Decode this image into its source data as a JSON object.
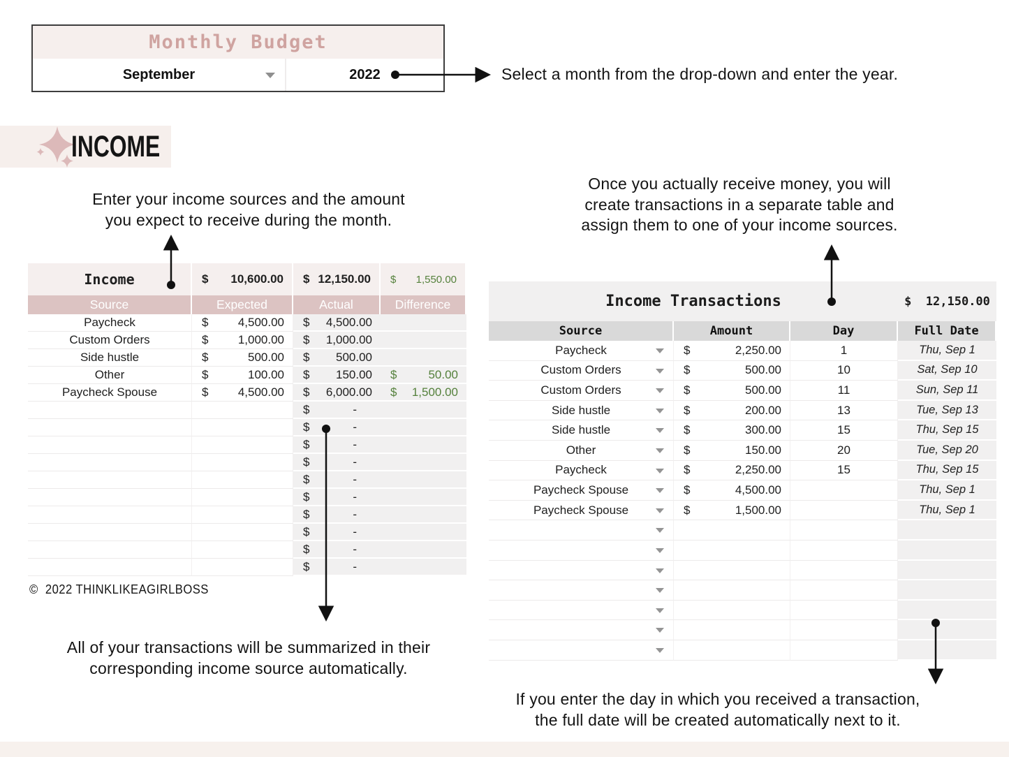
{
  "budget_widget": {
    "title": "Monthly Budget",
    "month": "September",
    "year": "2022"
  },
  "income_section": {
    "label": "INCOME"
  },
  "annotations": {
    "select_month": "Select a month from the drop-down and enter the year.",
    "enter_income_line1": "Enter your income sources and the amount",
    "enter_income_line2": "you expect to receive during the month.",
    "once_receive_line1": "Once you actually receive money, you will",
    "once_receive_line2": "create transactions in a separate table and",
    "once_receive_line3": "assign them to one of your income sources.",
    "summarized_line1": "All of your transactions will be summarized in their",
    "summarized_line2": "corresponding income source automatically.",
    "full_date_line1": "If you enter the day in which you received a transaction,",
    "full_date_line2": "the full date will be created automatically next to it."
  },
  "income_table": {
    "title": "Income",
    "currency_symbol": "$",
    "totals": {
      "expected": "10,600.00",
      "actual": "12,150.00",
      "difference": "1,550.00"
    },
    "headers": [
      "Source",
      "Expected",
      "Actual",
      "Difference"
    ],
    "rows": [
      {
        "source": "Paycheck",
        "expected": "4,500.00",
        "actual": "4,500.00",
        "difference": ""
      },
      {
        "source": "Custom Orders",
        "expected": "1,000.00",
        "actual": "1,000.00",
        "difference": ""
      },
      {
        "source": "Side hustle",
        "expected": "500.00",
        "actual": "500.00",
        "difference": ""
      },
      {
        "source": "Other",
        "expected": "100.00",
        "actual": "150.00",
        "difference": "50.00"
      },
      {
        "source": "Paycheck Spouse",
        "expected": "4,500.00",
        "actual": "6,000.00",
        "difference": "1,500.00"
      }
    ],
    "empty_row_count": 10,
    "empty_placeholder": "-"
  },
  "transactions_table": {
    "title": "Income Transactions",
    "total": "$  12,150.00",
    "currency_symbol": "$",
    "headers": [
      "Source",
      "Amount",
      "Day",
      "Full Date"
    ],
    "rows": [
      {
        "source": "Paycheck",
        "amount": "2,250.00",
        "day": "1",
        "full_date": "Thu, Sep 1"
      },
      {
        "source": "Custom Orders",
        "amount": "500.00",
        "day": "10",
        "full_date": "Sat, Sep 10"
      },
      {
        "source": "Custom Orders",
        "amount": "500.00",
        "day": "11",
        "full_date": "Sun, Sep 11"
      },
      {
        "source": "Side hustle",
        "amount": "200.00",
        "day": "13",
        "full_date": "Tue, Sep 13"
      },
      {
        "source": "Side hustle",
        "amount": "300.00",
        "day": "15",
        "full_date": "Thu, Sep 15"
      },
      {
        "source": "Other",
        "amount": "150.00",
        "day": "20",
        "full_date": "Tue, Sep 20"
      },
      {
        "source": "Paycheck",
        "amount": "2,250.00",
        "day": "15",
        "full_date": "Thu, Sep 15"
      },
      {
        "source": "Paycheck Spouse",
        "amount": "4,500.00",
        "day": "",
        "full_date": "Thu, Sep 1"
      },
      {
        "source": "Paycheck Spouse",
        "amount": "1,500.00",
        "day": "",
        "full_date": "Thu, Sep 1"
      }
    ],
    "empty_row_count": 7
  },
  "copyright": "©  2022 THINKLIKEAGIRLBOSS",
  "colors": {
    "accent_rose": "#cfa3a0",
    "header_pink": "#dcc3c2",
    "bg_pink_light": "#f6efed",
    "bg_pink_title": "#f5efee",
    "bg_beige": "#f6efec",
    "bg_beige2": "#f7f1ed",
    "bg_gray": "#f1f0f0",
    "header_gray": "#d9d9d9",
    "green": "#55813c",
    "arrow_black": "#111111",
    "sparkle_pink": "#dcb9b9"
  }
}
